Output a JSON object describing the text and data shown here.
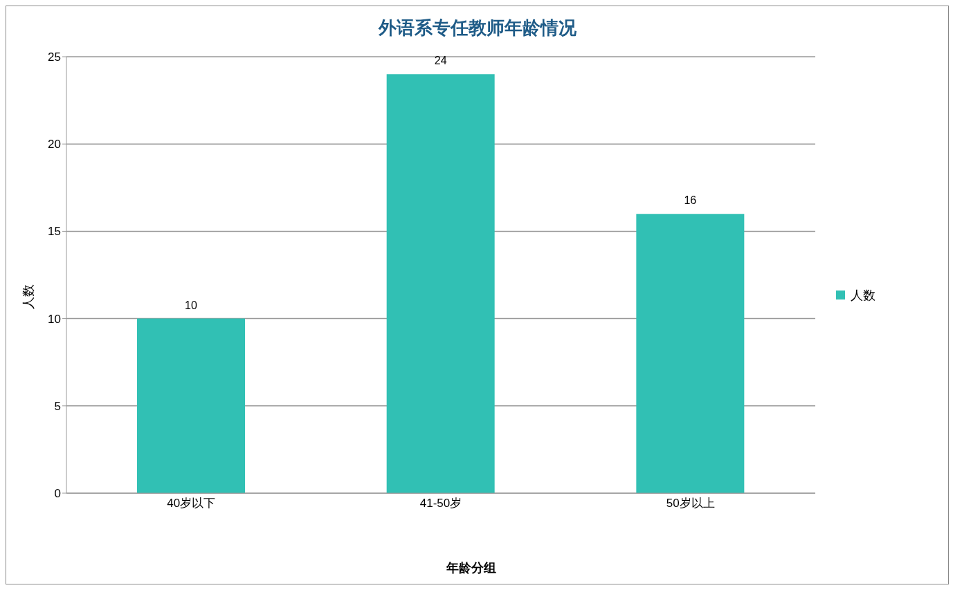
{
  "chart_data": {
    "type": "bar",
    "title": "外语系专任教师年龄情况",
    "xlabel": "年龄分组",
    "ylabel": "人数",
    "categories": [
      "40岁以下",
      "41-50岁",
      "50岁以上"
    ],
    "series": [
      {
        "name": "人数",
        "color": "#31c0b4",
        "values": [
          10,
          24,
          16
        ]
      }
    ],
    "ylim": [
      0,
      25
    ],
    "yticks": [
      0,
      5,
      10,
      15,
      20,
      25
    ],
    "grid": "y",
    "legend": "right",
    "data_labels": true
  }
}
